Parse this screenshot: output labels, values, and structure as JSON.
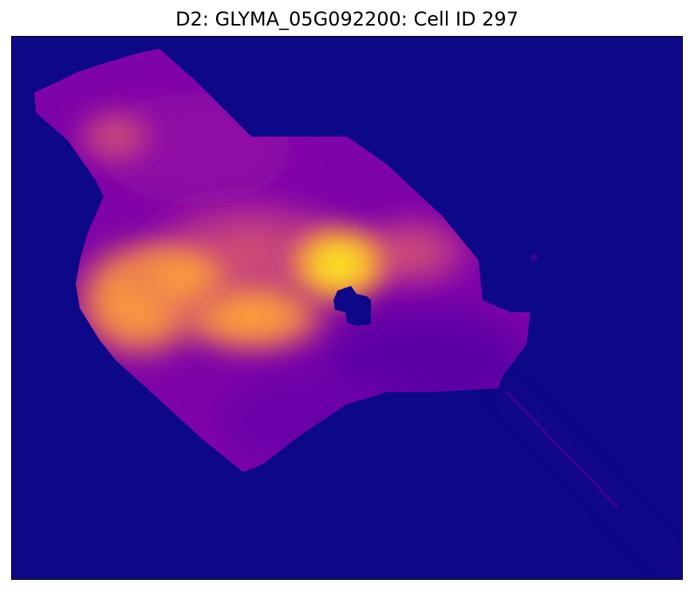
{
  "figure": {
    "title": "D2: GLYMA_05G092200: Cell ID 297",
    "colormap": "plasma",
    "background_color": "#0d0887",
    "axes_ticks_visible": false
  }
}
